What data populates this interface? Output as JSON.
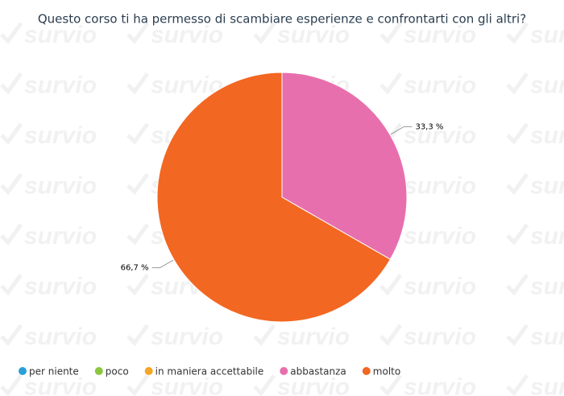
{
  "watermark": "survio",
  "chart_data": {
    "type": "pie",
    "title": "Questo corso ti ha permesso di scambiare esperienze e confrontarti con gli altri?",
    "categories": [
      "per niente",
      "poco",
      "in maniera accettabile",
      "abbastanza",
      "molto"
    ],
    "values": [
      0,
      0,
      0,
      33.3,
      66.7
    ],
    "value_labels": [
      null,
      null,
      null,
      "33,3 %",
      "66,7 %"
    ],
    "colors": [
      "#2b9fd9",
      "#8cc63f",
      "#f5a623",
      "#e86fad",
      "#f26722"
    ],
    "legend": "bottom"
  }
}
